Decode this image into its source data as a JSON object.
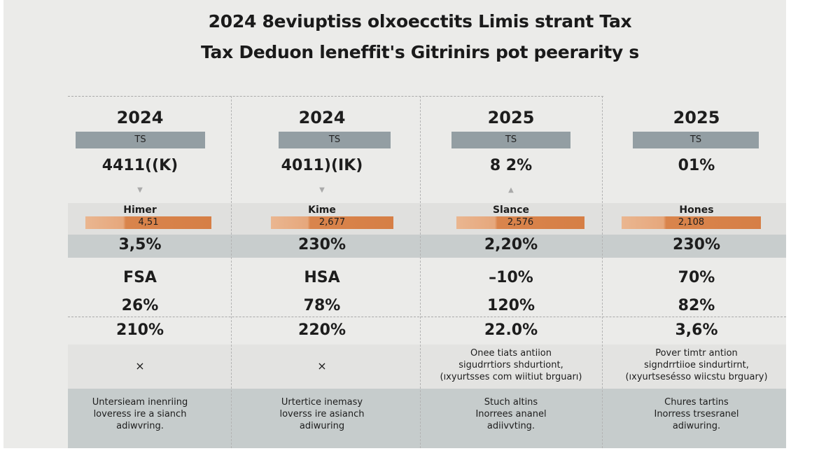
{
  "title": {
    "line1": "2024 8eviuptiss olxoecctits Limis strant Tax",
    "line2": "Tax Deduon leneffit's Gitrinirs pot peerarity s"
  },
  "colors": {
    "accent_orange": "#d9844c",
    "ts_bar": "#939ea3",
    "gray_band": "#c8cdcd"
  },
  "columns": [
    {
      "year": "2024",
      "ts": "TS",
      "value": "4411((K)",
      "arrow": "down",
      "label": "Himer",
      "bar_value": "4,51",
      "band_value": "3,5%",
      "name": "FSA",
      "pct1": "26%",
      "pct2": "210%",
      "note": "×",
      "desc": "Untersieam inenriing\nloveress ire a sianch\nadiwvring."
    },
    {
      "year": "2024",
      "ts": "TS",
      "value": "4011)(IK)",
      "arrow": "down",
      "label": "Kime",
      "bar_value": "2,677",
      "band_value": "230%",
      "name": "HSA",
      "pct1": "78%",
      "pct2": "220%",
      "note": "×",
      "desc": "Urtertice inemasy\nloverss ire asianch\nadiwuring"
    },
    {
      "year": "2025",
      "ts": "TS",
      "value": "8 2%",
      "arrow": "up",
      "label": "Slance",
      "bar_value": "2,576",
      "band_value": "2,20%",
      "name": "–10%",
      "pct1": "120%",
      "pct2": "22.0%",
      "note": "Onee tiats antiion\nsigudrrtiors shdurtiont,\n(ıxyurtsses com wiitiut brguarı)",
      "desc": "Stuch altins\nInorrees ananel\nadiivvting."
    },
    {
      "year": "2025",
      "ts": "TS",
      "value": "01%",
      "arrow": "none",
      "label": "Hones",
      "bar_value": "2,108",
      "band_value": "230%",
      "name": "70%",
      "pct1": "82%",
      "pct2": "3,6%",
      "note": "Pover timtr antion\nsigndrrtiioe sindurtirnt,\n(ıxyurtsesésso wiicstu brguary)",
      "desc": "Chures tartins\nInorress trsesranel\nadiwuring."
    }
  ]
}
